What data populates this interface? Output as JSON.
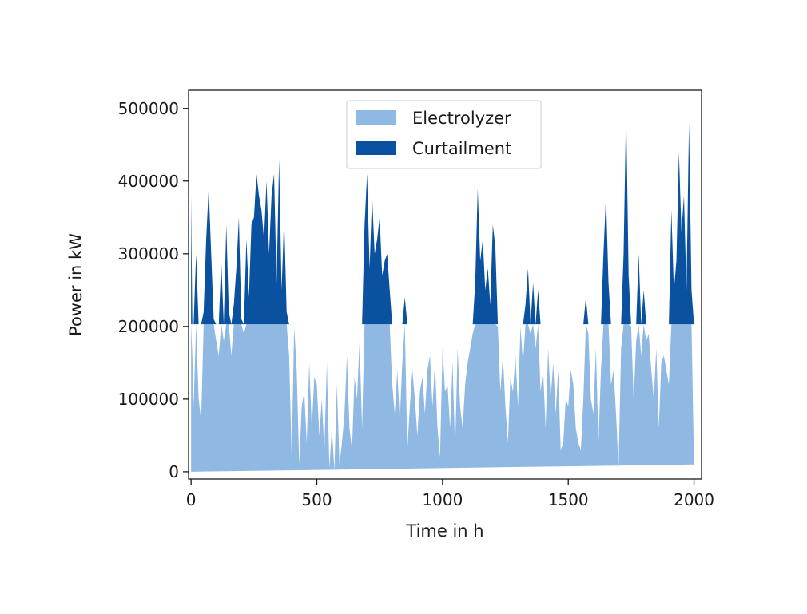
{
  "chart_data": {
    "type": "area",
    "stacked": true,
    "title": "",
    "xlabel": "Time in h",
    "ylabel": "Power in kW",
    "xlim": [
      -10,
      2030
    ],
    "ylim": [
      -10000,
      525000
    ],
    "xticks": [
      0,
      500,
      1000,
      1500,
      2000
    ],
    "yticks": [
      0,
      100000,
      200000,
      300000,
      400000,
      500000
    ],
    "xtick_labels": [
      "0",
      "500",
      "1000",
      "1500",
      "2000"
    ],
    "ytick_labels": [
      "0",
      "100000",
      "200000",
      "300000",
      "400000",
      "500000"
    ],
    "electrolyzer_capacity": 203000,
    "legend": {
      "placement": "upper center",
      "entries": [
        "Electrolyzer",
        "Curtailment"
      ]
    },
    "grid": false,
    "colors": {
      "electrolyzer": "#8fb8e3",
      "curtailment": "#0a52a0",
      "axes": "#1a1a1a"
    },
    "series": [
      {
        "name": "Electrolyzer",
        "color": "#8fb8e3"
      },
      {
        "name": "Curtailment",
        "color": "#0a52a0"
      }
    ],
    "x": [
      0,
      5,
      10,
      20,
      30,
      40,
      50,
      60,
      70,
      80,
      90,
      100,
      110,
      120,
      130,
      140,
      150,
      160,
      170,
      180,
      190,
      200,
      210,
      220,
      230,
      240,
      250,
      260,
      270,
      280,
      290,
      300,
      310,
      320,
      330,
      340,
      350,
      360,
      370,
      380,
      390,
      400,
      410,
      420,
      430,
      440,
      450,
      460,
      470,
      480,
      490,
      500,
      510,
      520,
      530,
      540,
      550,
      560,
      570,
      580,
      590,
      600,
      610,
      620,
      630,
      640,
      650,
      660,
      670,
      680,
      690,
      700,
      710,
      720,
      730,
      740,
      750,
      760,
      770,
      780,
      790,
      800,
      810,
      820,
      830,
      840,
      850,
      860,
      870,
      880,
      890,
      900,
      910,
      920,
      930,
      940,
      950,
      960,
      970,
      980,
      990,
      1000,
      1010,
      1020,
      1030,
      1040,
      1050,
      1060,
      1070,
      1080,
      1090,
      1100,
      1110,
      1120,
      1130,
      1140,
      1150,
      1160,
      1170,
      1180,
      1190,
      1200,
      1210,
      1220,
      1230,
      1240,
      1250,
      1260,
      1270,
      1280,
      1290,
      1300,
      1310,
      1320,
      1330,
      1340,
      1350,
      1360,
      1370,
      1380,
      1390,
      1400,
      1410,
      1420,
      1430,
      1440,
      1450,
      1460,
      1470,
      1480,
      1490,
      1500,
      1510,
      1520,
      1530,
      1540,
      1550,
      1560,
      1570,
      1580,
      1590,
      1600,
      1610,
      1620,
      1630,
      1640,
      1650,
      1660,
      1670,
      1680,
      1690,
      1700,
      1710,
      1720,
      1730,
      1740,
      1750,
      1760,
      1770,
      1780,
      1790,
      1800,
      1810,
      1820,
      1830,
      1840,
      1850,
      1860,
      1870,
      1880,
      1890,
      1900,
      1910,
      1920,
      1930,
      1940,
      1950,
      1960,
      1970,
      1980,
      1990,
      2000,
      2010,
      2020
    ],
    "total_power": [
      380000,
      160000,
      90000,
      300000,
      100000,
      70000,
      220000,
      320000,
      390000,
      300000,
      210000,
      180000,
      160000,
      290000,
      180000,
      340000,
      220000,
      160000,
      230000,
      280000,
      350000,
      210000,
      190000,
      320000,
      240000,
      340000,
      350000,
      410000,
      380000,
      360000,
      320000,
      400000,
      300000,
      380000,
      410000,
      260000,
      430000,
      250000,
      350000,
      220000,
      160000,
      20000,
      200000,
      140000,
      10000,
      90000,
      110000,
      40000,
      150000,
      60000,
      130000,
      120000,
      50000,
      100000,
      30000,
      150000,
      5000,
      60000,
      2000,
      120000,
      10000,
      40000,
      80000,
      160000,
      60000,
      30000,
      130000,
      100000,
      180000,
      60000,
      340000,
      410000,
      280000,
      380000,
      300000,
      320000,
      350000,
      270000,
      290000,
      300000,
      250000,
      120000,
      80000,
      140000,
      70000,
      150000,
      240000,
      30000,
      90000,
      140000,
      100000,
      50000,
      110000,
      130000,
      80000,
      140000,
      160000,
      90000,
      150000,
      60000,
      20000,
      170000,
      110000,
      120000,
      60000,
      150000,
      30000,
      170000,
      90000,
      60000,
      120000,
      150000,
      170000,
      190000,
      260000,
      390000,
      290000,
      320000,
      250000,
      280000,
      230000,
      340000,
      310000,
      200000,
      110000,
      160000,
      90000,
      40000,
      130000,
      110000,
      160000,
      90000,
      200000,
      150000,
      230000,
      280000,
      190000,
      260000,
      170000,
      250000,
      110000,
      140000,
      60000,
      170000,
      100000,
      150000,
      80000,
      140000,
      30000,
      40000,
      100000,
      90000,
      140000,
      120000,
      60000,
      40000,
      30000,
      100000,
      240000,
      190000,
      100000,
      80000,
      170000,
      40000,
      140000,
      300000,
      380000,
      260000,
      120000,
      140000,
      80000,
      5000,
      170000,
      300000,
      500000,
      270000,
      200000,
      100000,
      180000,
      300000,
      160000,
      250000,
      180000,
      190000,
      140000,
      100000,
      170000,
      60000,
      150000,
      160000,
      140000,
      120000,
      360000,
      250000,
      290000,
      440000,
      330000,
      380000,
      250000,
      480000,
      250000,
      10000
    ]
  }
}
